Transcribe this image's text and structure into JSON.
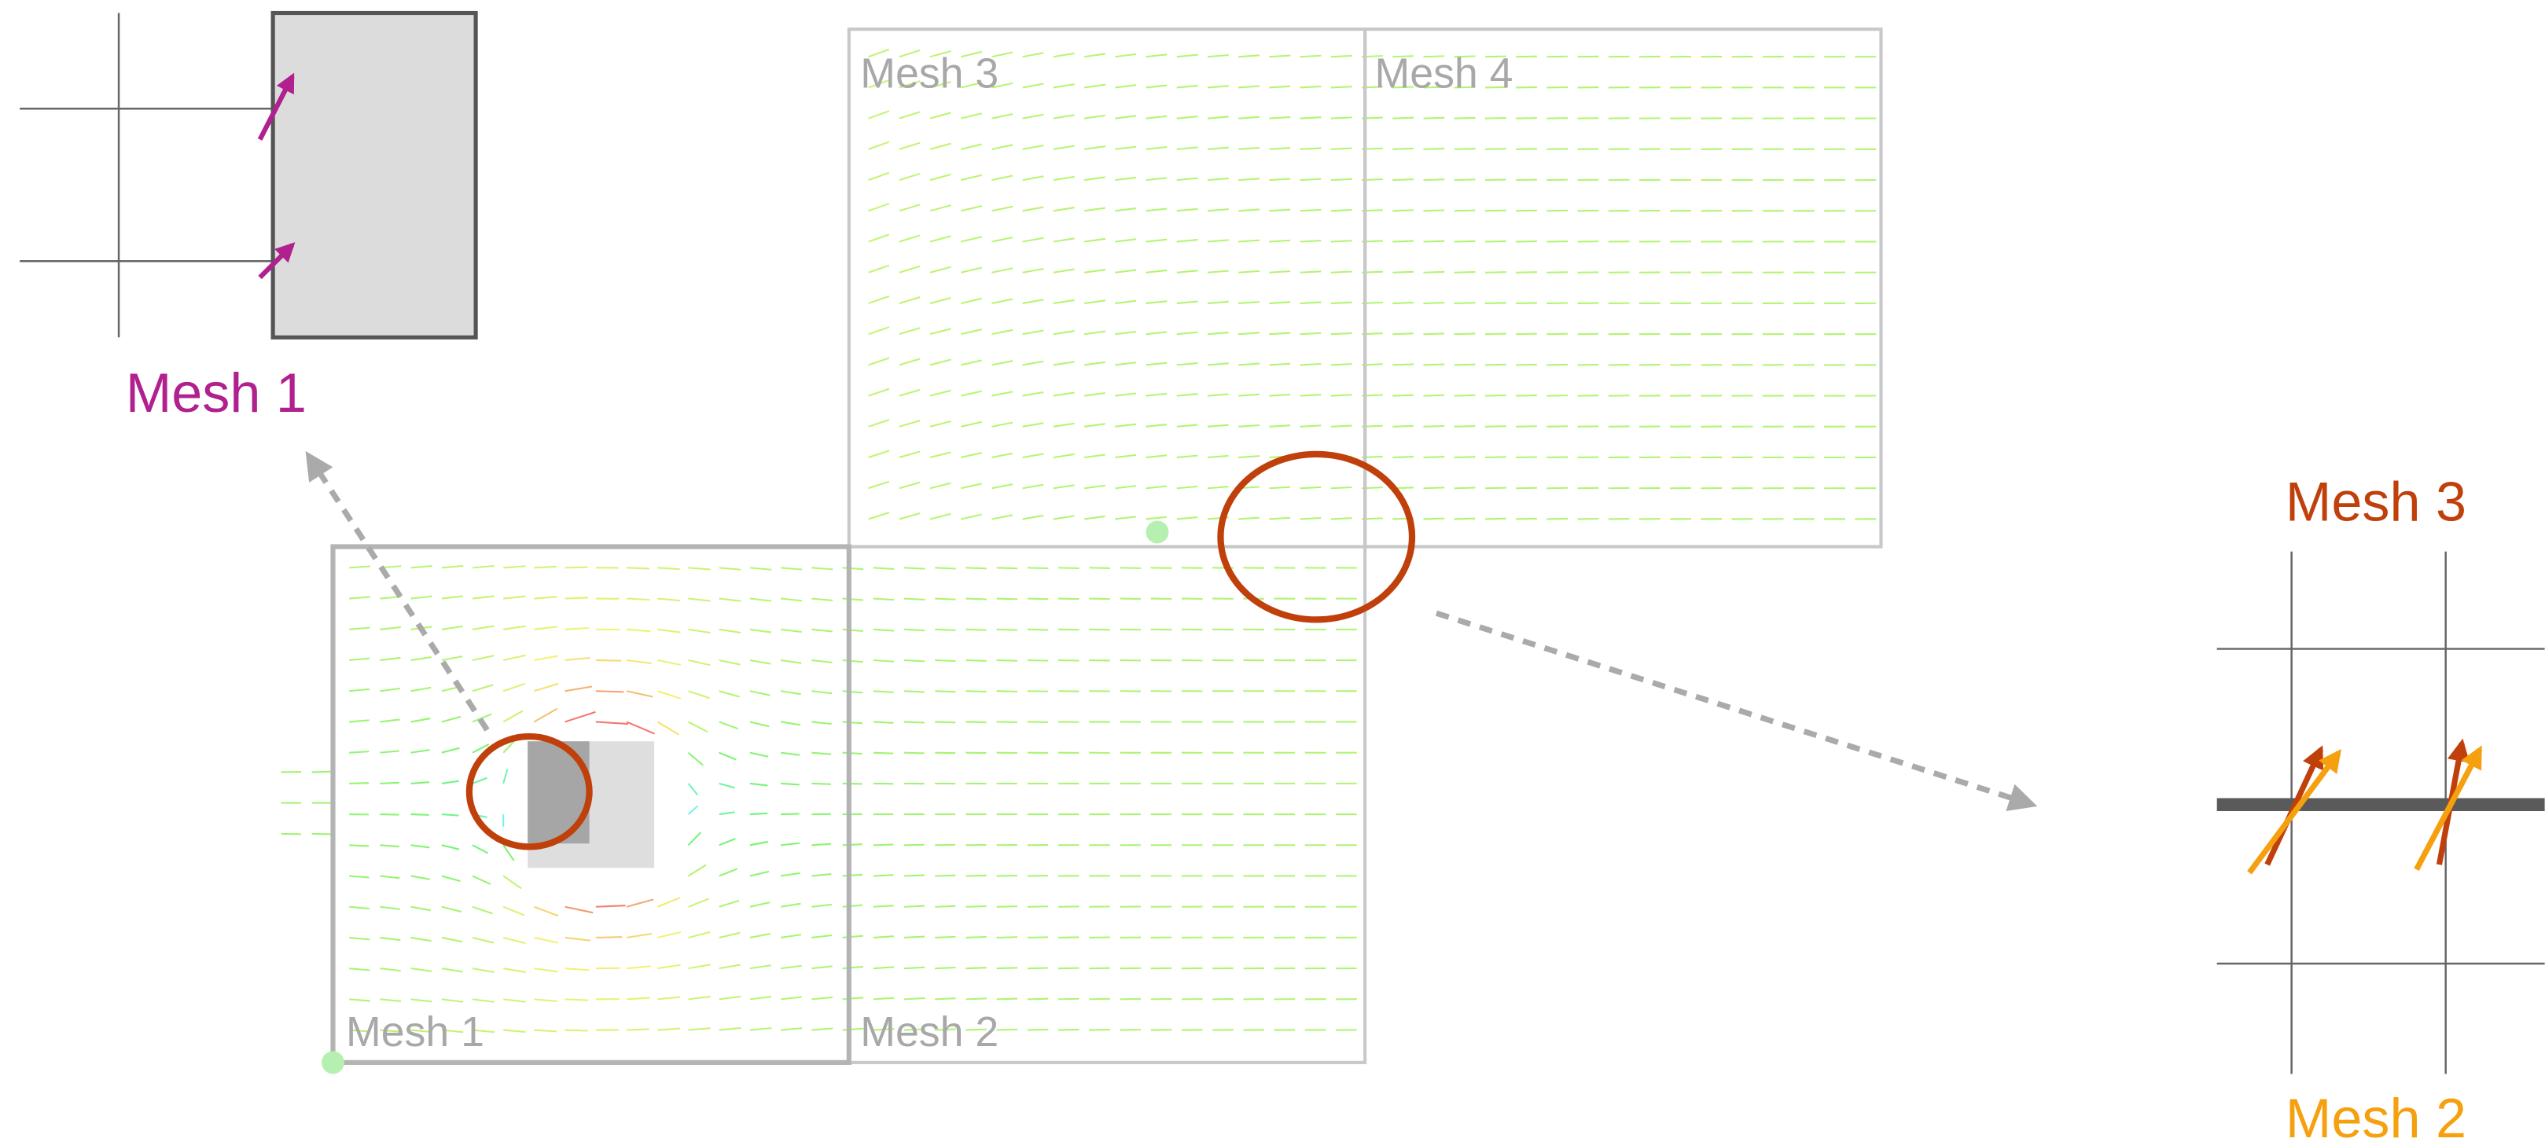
{
  "inset_left": {
    "label": "Mesh 1"
  },
  "meshes": [
    {
      "label": "Mesh 3"
    },
    {
      "label": "Mesh 4"
    },
    {
      "label": "Mesh 1"
    },
    {
      "label": "Mesh 2"
    }
  ],
  "inset_right": {
    "top_label": "Mesh 3",
    "bottom_label": "Mesh 2"
  }
}
